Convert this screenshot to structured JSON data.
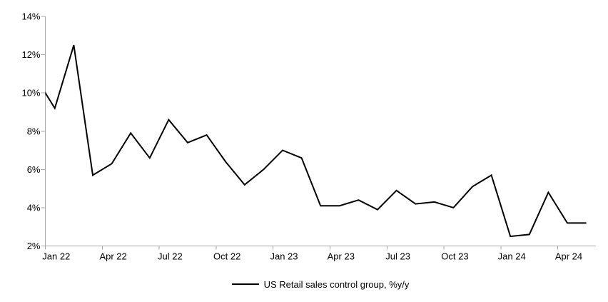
{
  "chart_data": {
    "type": "line",
    "title": "",
    "legend": "US Retail sales control group, %y/y",
    "legend_position": "bottom-center",
    "series_color": "#000000",
    "axis_color": "#a6a6a6",
    "text_color": "#000000",
    "grid": "off",
    "ylim": [
      2,
      14
    ],
    "y_tick_labels": [
      "14%",
      "12%",
      "10%",
      "8%",
      "6%",
      "4%",
      "2%"
    ],
    "x_tick_labels": [
      "Jan 22",
      "Apr 22",
      "Jul 22",
      "Oct 22",
      "Jan 23",
      "Apr 23",
      "Jul 23",
      "Oct 23",
      "Jan 24",
      "Apr 24"
    ],
    "x_label_interval_months": 3,
    "months": [
      "Dec 21",
      "Jan 22",
      "Feb 22",
      "Mar 22",
      "Apr 22",
      "May 22",
      "Jun 22",
      "Jul 22",
      "Aug 22",
      "Sep 22",
      "Oct 22",
      "Nov 22",
      "Dec 22",
      "Jan 23",
      "Feb 23",
      "Mar 23",
      "Apr 23",
      "May 23",
      "Jun 23",
      "Jul 23",
      "Aug 23",
      "Sep 23",
      "Oct 23",
      "Nov 23",
      "Dec 23",
      "Jan 24",
      "Feb 24",
      "Mar 24",
      "Apr 24",
      "May 24"
    ],
    "values": [
      10.8,
      9.2,
      12.5,
      5.7,
      6.3,
      7.9,
      6.6,
      8.6,
      7.4,
      7.8,
      6.4,
      5.2,
      6.0,
      7.0,
      6.6,
      4.1,
      4.1,
      4.4,
      3.9,
      4.9,
      4.2,
      4.3,
      4.0,
      5.1,
      5.7,
      2.5,
      2.6,
      4.8,
      3.2,
      3.2
    ],
    "note": "First point (Dec 21) lies left of the plot edge; its entering segment is clipped at the y-axis"
  }
}
